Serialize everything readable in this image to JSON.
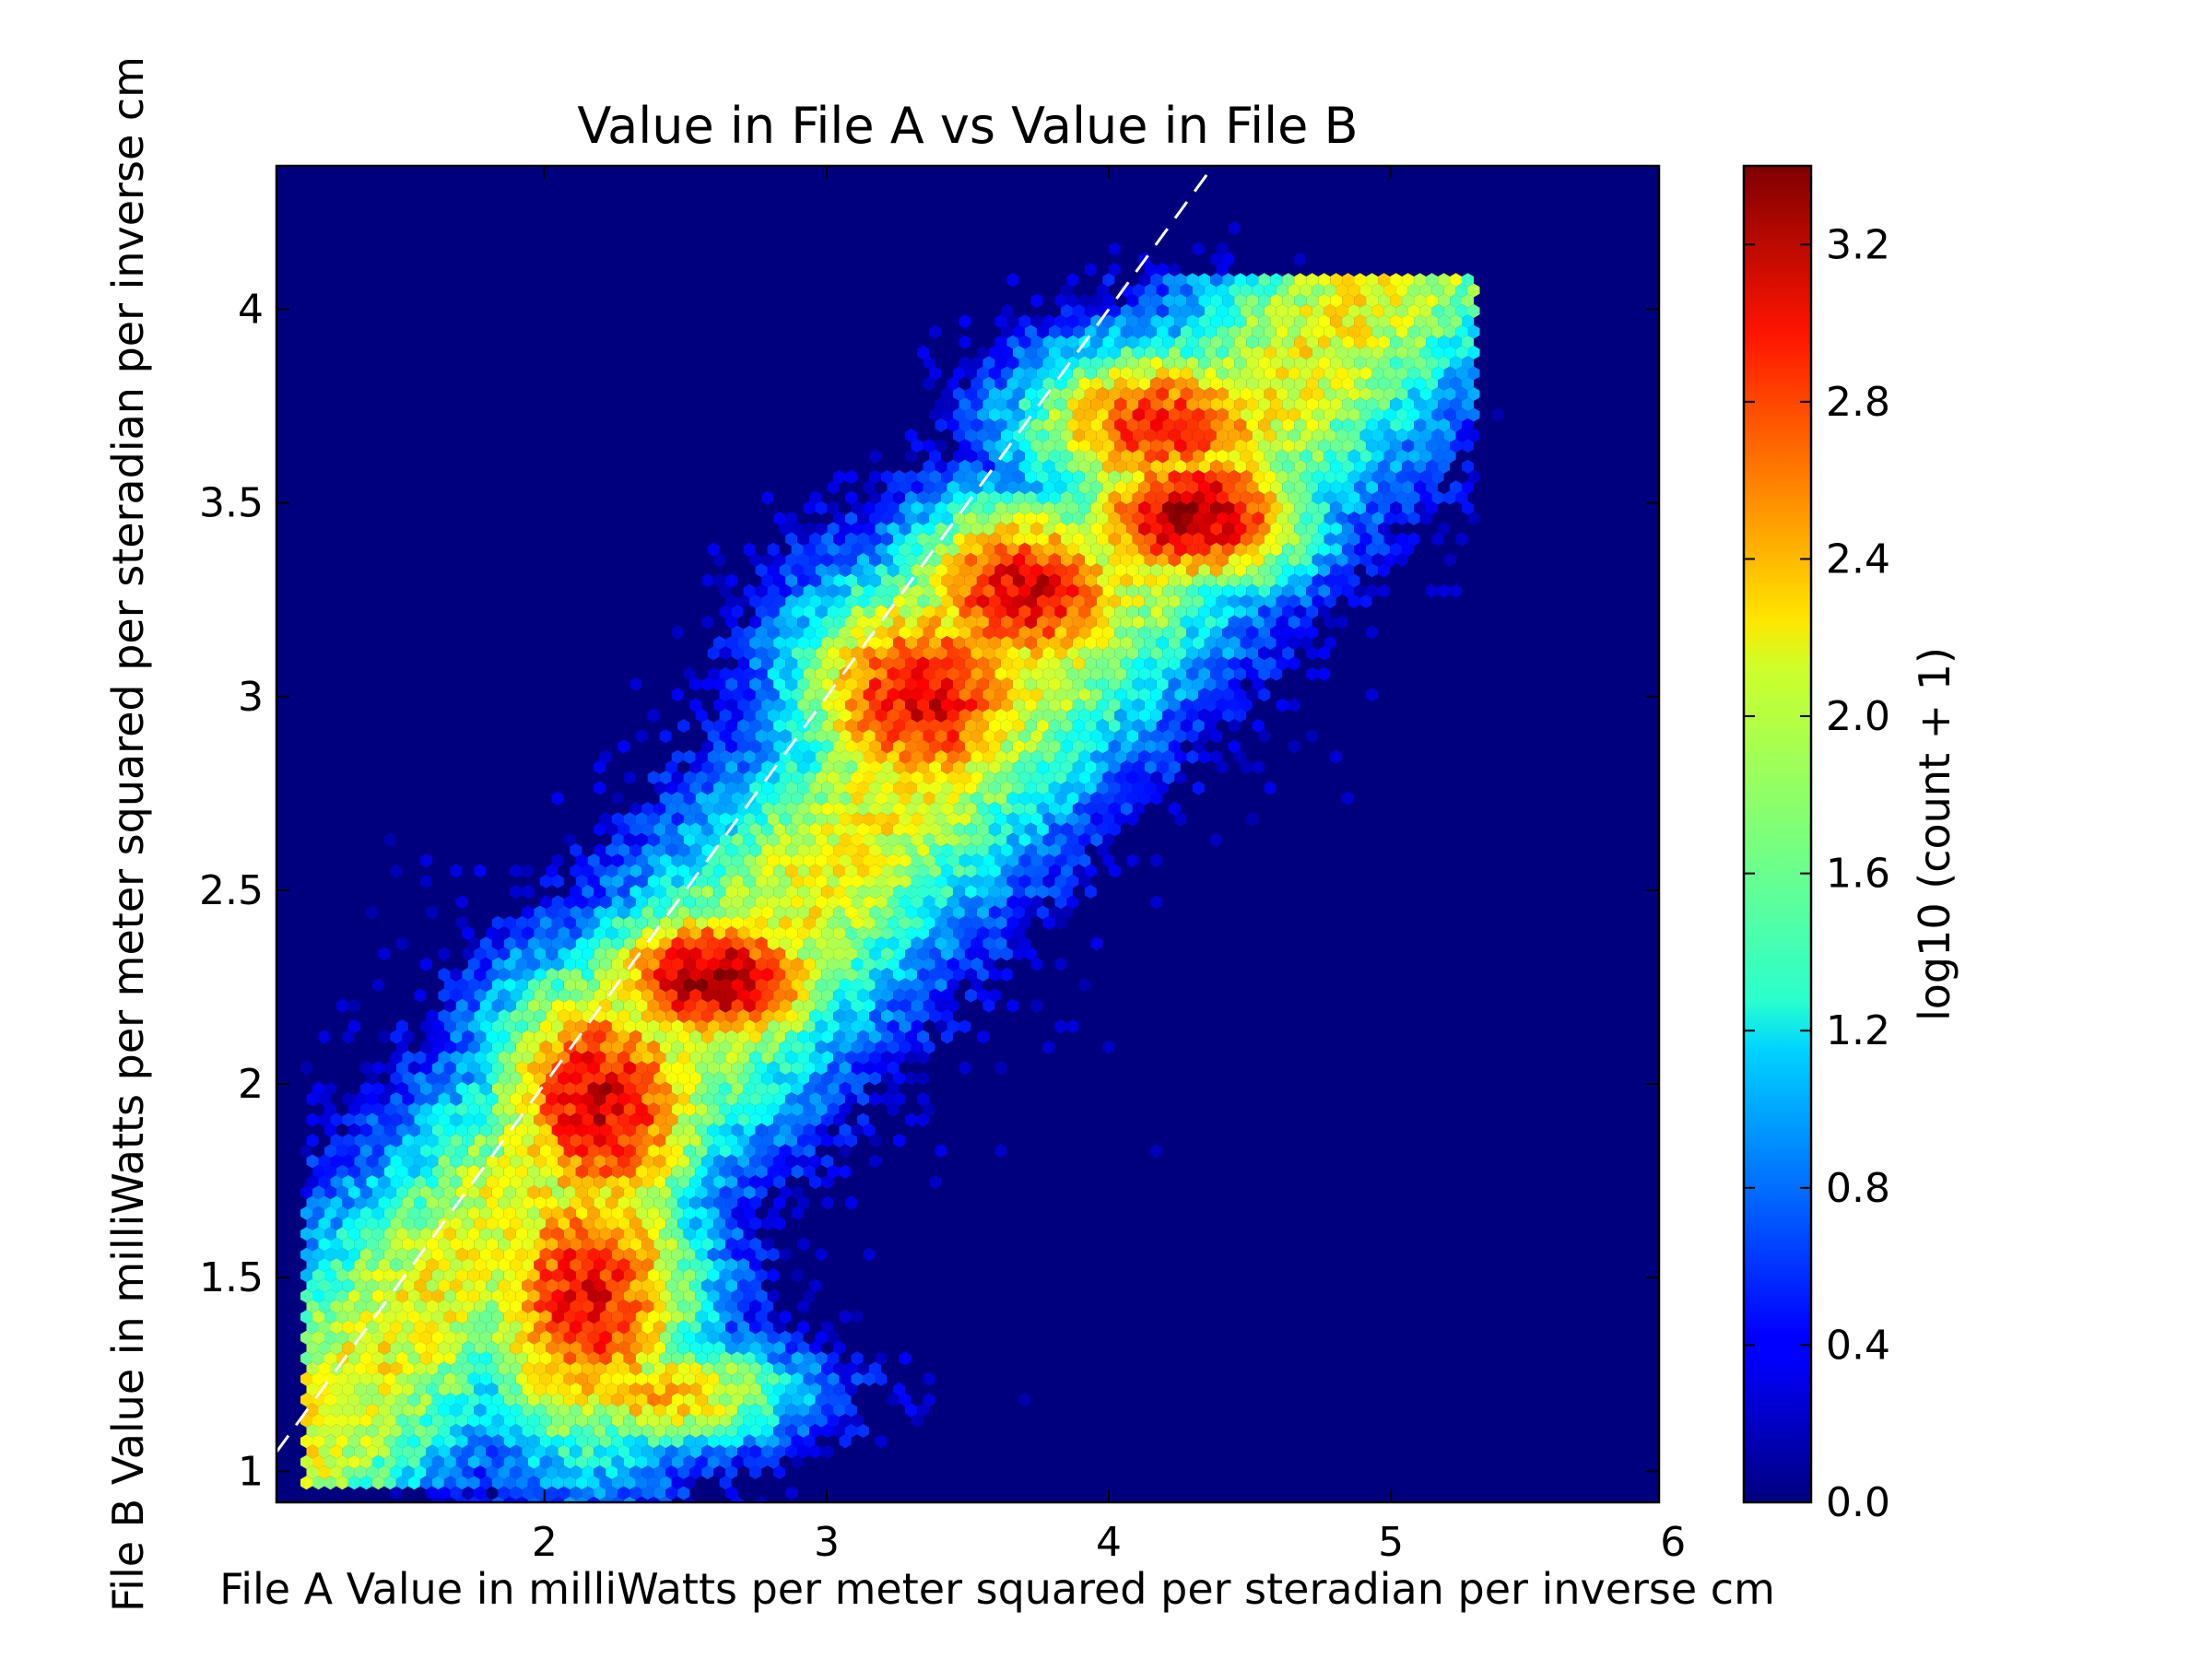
{
  "chart_data": {
    "type": "heatmap",
    "subtype": "hexbin",
    "title": "Value in File A vs Value in File B",
    "xlabel": "File A Value in milliWatts per meter squared per steradian per inverse cm",
    "ylabel": "File B Value in milliWatts per meter squared per steradian per inverse cm",
    "xlim": [
      1.05,
      5.95
    ],
    "ylim": [
      0.92,
      4.37
    ],
    "x_ticks": [
      {
        "value": 2,
        "label": "2"
      },
      {
        "value": 3,
        "label": "3"
      },
      {
        "value": 4,
        "label": "4"
      },
      {
        "value": 5,
        "label": "5"
      },
      {
        "value": 6,
        "label": "6"
      }
    ],
    "y_ticks": [
      {
        "value": 1,
        "label": "1"
      },
      {
        "value": 1.5,
        "label": "1.5"
      },
      {
        "value": 2,
        "label": "2"
      },
      {
        "value": 2.5,
        "label": "2.5"
      },
      {
        "value": 3,
        "label": "3"
      },
      {
        "value": 3.5,
        "label": "3.5"
      },
      {
        "value": 4,
        "label": "4"
      }
    ],
    "colormap": "jet",
    "background_color": "#00007f",
    "colorbar": {
      "label": "log10 (count + 1)",
      "range": [
        0.0,
        3.4
      ],
      "ticks": [
        {
          "value": 0.0,
          "label": "0.0"
        },
        {
          "value": 0.4,
          "label": "0.4"
        },
        {
          "value": 0.8,
          "label": "0.8"
        },
        {
          "value": 1.2,
          "label": "1.2"
        },
        {
          "value": 1.6,
          "label": "1.6"
        },
        {
          "value": 2.0,
          "label": "2.0"
        },
        {
          "value": 2.4,
          "label": "2.4"
        },
        {
          "value": 2.8,
          "label": "2.8"
        },
        {
          "value": 3.2,
          "label": "3.2"
        }
      ]
    },
    "reference_line": {
      "style": "dashed",
      "color": "#ffffff",
      "slope": 1.0,
      "intercept": 0.0
    },
    "density_clusters": [
      {
        "x": 2.15,
        "y": 1.45,
        "sx": 0.28,
        "sy": 0.28,
        "peak": 3.0
      },
      {
        "x": 2.2,
        "y": 1.95,
        "sx": 0.28,
        "sy": 0.25,
        "peak": 3.1
      },
      {
        "x": 2.6,
        "y": 2.27,
        "sx": 0.3,
        "sy": 0.14,
        "peak": 3.3
      },
      {
        "x": 3.35,
        "y": 3.0,
        "sx": 0.32,
        "sy": 0.22,
        "peak": 3.05
      },
      {
        "x": 3.7,
        "y": 3.27,
        "sx": 0.3,
        "sy": 0.17,
        "peak": 3.1
      },
      {
        "x": 4.3,
        "y": 3.47,
        "sx": 0.3,
        "sy": 0.14,
        "peak": 3.3
      },
      {
        "x": 4.2,
        "y": 3.7,
        "sx": 0.35,
        "sy": 0.15,
        "peak": 2.9
      },
      {
        "x": 2.4,
        "y": 1.2,
        "sx": 0.35,
        "sy": 0.1,
        "peak": 2.4
      }
    ]
  }
}
